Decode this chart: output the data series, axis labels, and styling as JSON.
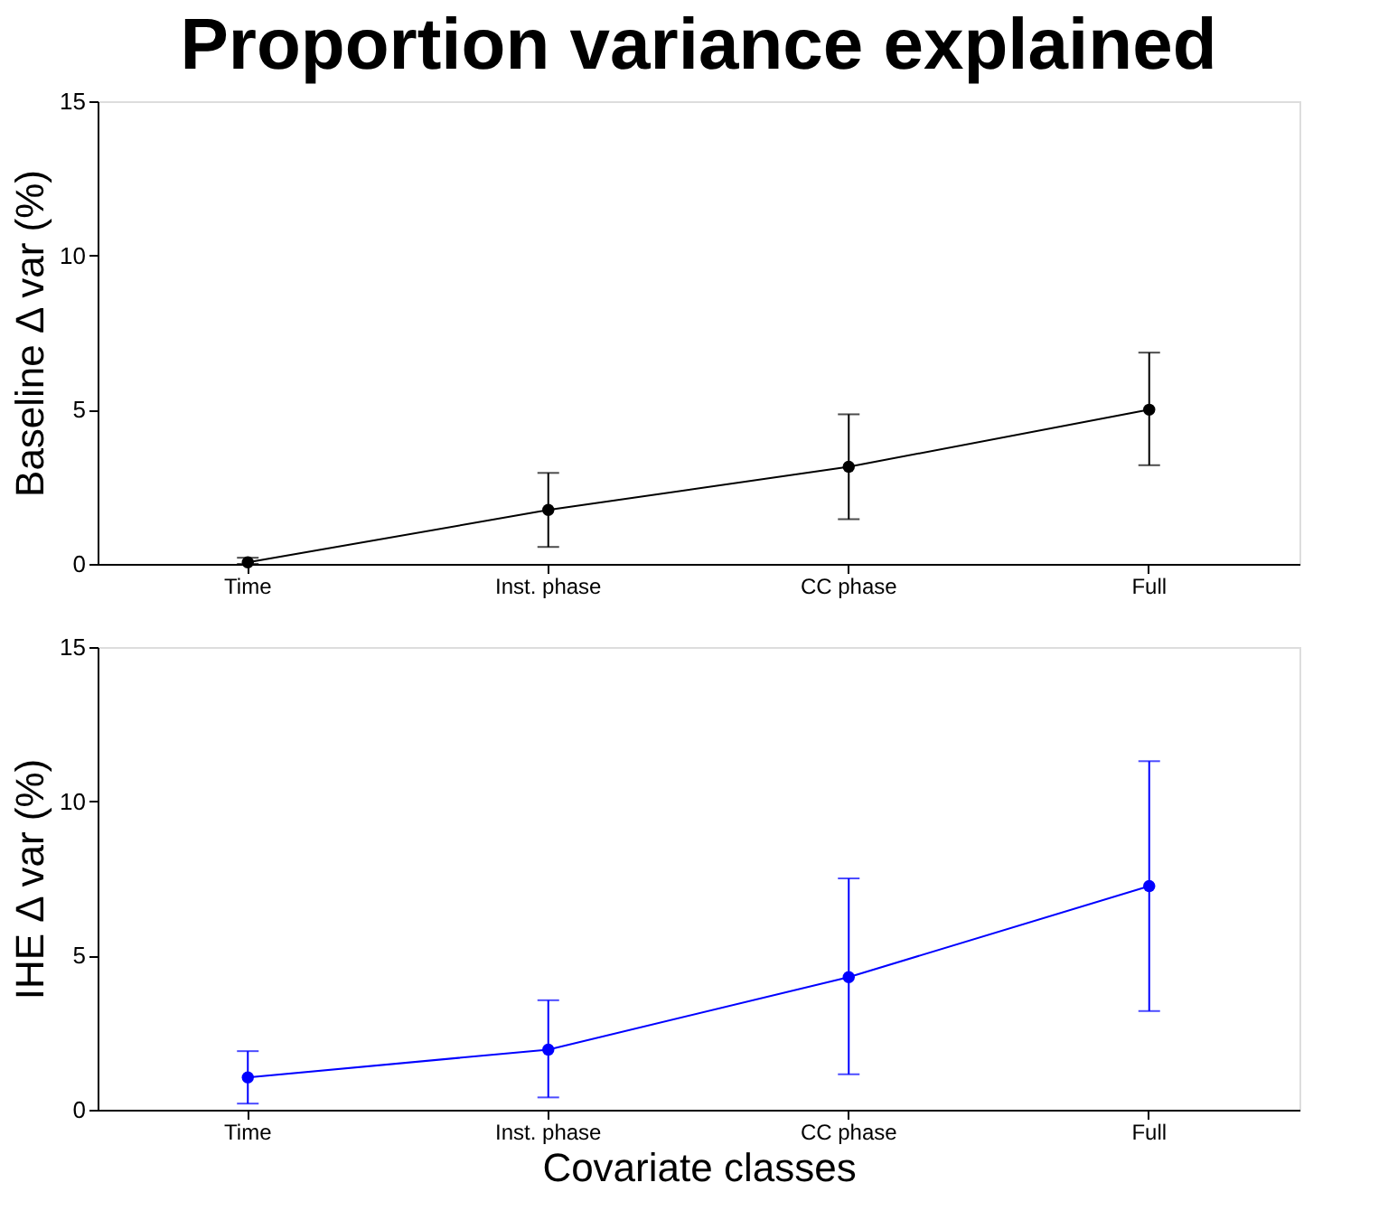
{
  "chart_data": [
    {
      "type": "line",
      "title": "Proportion variance explained",
      "ylabel": "Baseline Δ var (%)",
      "categories": [
        "Time",
        "Inst. phase",
        "CC phase",
        "Full"
      ],
      "series": [
        {
          "color": "#000000",
          "values": [
            0.05,
            1.75,
            3.15,
            5.0
          ],
          "errors": [
            [
              0.0,
              0.2
            ],
            [
              0.55,
              2.95
            ],
            [
              1.45,
              4.85
            ],
            [
              3.2,
              6.85
            ]
          ]
        }
      ],
      "ylim": [
        0,
        15
      ],
      "yticks": [
        0,
        5,
        10,
        15
      ],
      "grid": false,
      "marker": "circle",
      "line_style": "solid"
    },
    {
      "type": "line",
      "xlabel": "Covariate classes",
      "ylabel": "IHE Δ var (%)",
      "categories": [
        "Time",
        "Inst. phase",
        "CC phase",
        "Full"
      ],
      "series": [
        {
          "color": "#0000ff",
          "values": [
            1.05,
            1.95,
            4.3,
            7.25
          ],
          "errors": [
            [
              0.2,
              1.9
            ],
            [
              0.4,
              3.55
            ],
            [
              1.15,
              7.5
            ],
            [
              3.2,
              11.3
            ]
          ]
        }
      ],
      "ylim": [
        0,
        15
      ],
      "yticks": [
        0,
        5,
        10,
        15
      ],
      "grid": false,
      "marker": "circle",
      "line_style": "solid"
    }
  ]
}
